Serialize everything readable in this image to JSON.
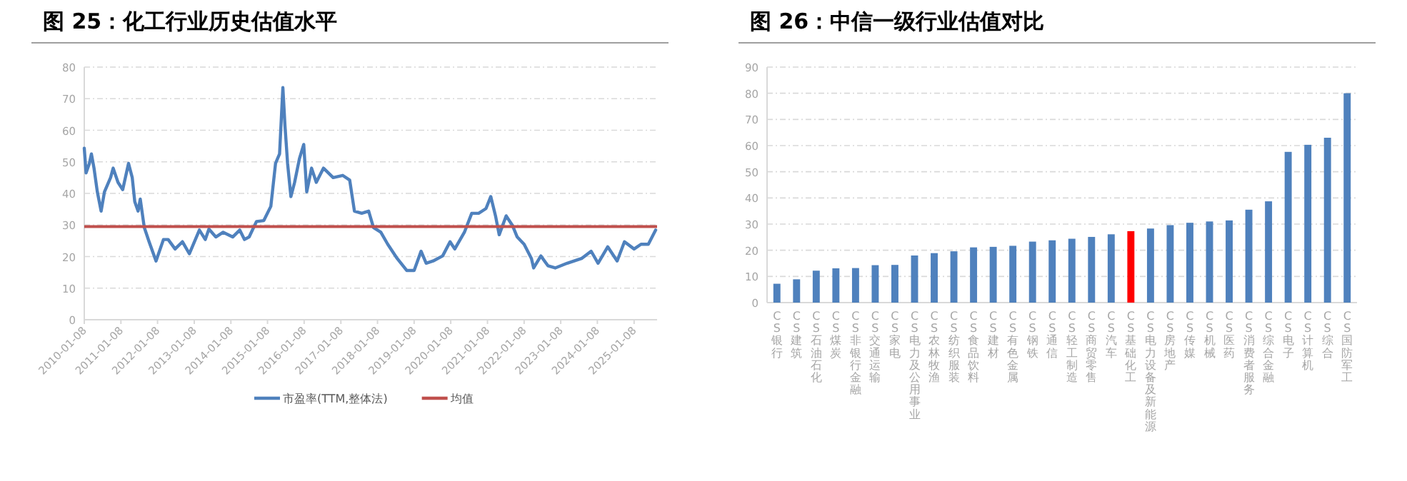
{
  "chart_data": [
    {
      "type": "line",
      "title": "图 25：化工行业历史估值水平",
      "legend": "bottom",
      "grid": "y",
      "line_style": "solid",
      "ylim": [
        0,
        80
      ],
      "yticks": [
        0,
        10,
        20,
        30,
        40,
        50,
        60,
        70,
        80
      ],
      "xlim": [
        "2010-01-08",
        "2025-08-25"
      ],
      "xticks": [
        {
          "value": "2010-01-08",
          "label": "2010-01-08"
        },
        {
          "value": "2011-01-08",
          "label": "2011-01-08"
        },
        {
          "value": "2012-01-08",
          "label": "2012-01-08"
        },
        {
          "value": "2013-01-08",
          "label": "2013-01-08"
        },
        {
          "value": "2014-01-08",
          "label": "2014-01-08"
        },
        {
          "value": "2015-01-08",
          "label": "2015-01-08"
        },
        {
          "value": "2016-01-08",
          "label": "2016-01-08"
        },
        {
          "value": "2017-01-08",
          "label": "2017-01-08"
        },
        {
          "value": "2018-01-08",
          "label": "2018-01-08"
        },
        {
          "value": "2019-01-08",
          "label": "2019-01-08"
        },
        {
          "value": "2020-01-08",
          "label": "2020-01-08"
        },
        {
          "value": "2021-01-08",
          "label": "2021-01-08"
        },
        {
          "value": "2022-01-08",
          "label": "2022-01-08"
        },
        {
          "value": "2023-01-08",
          "label": "2023-01-08"
        },
        {
          "value": "2024-01-08",
          "label": "2024-01-08"
        },
        {
          "value": "2025-01-08",
          "label": "2025-01-08"
        }
      ],
      "ref_lines": [
        {
          "axis": "y",
          "value": 29.5,
          "label": "均值",
          "color": "#c0504d"
        }
      ],
      "series": [
        {
          "name": "市盈率(TTM,整体法)",
          "color": "#4f81bd",
          "x": [
            "2010-01-08",
            "2010-01-26",
            "2010-02-28",
            "2010-03-20",
            "2010-04-15",
            "2010-05-18",
            "2010-06-25",
            "2010-07-28",
            "2010-09-27",
            "2010-10-23",
            "2010-12-10",
            "2011-01-26",
            "2011-03-25",
            "2011-05-01",
            "2011-05-26",
            "2011-06-28",
            "2011-07-20",
            "2011-08-29",
            "2011-10-16",
            "2011-12-24",
            "2012-03-07",
            "2012-04-23",
            "2012-07-01",
            "2012-09-12",
            "2012-11-20",
            "2013-02-28",
            "2013-04-28",
            "2013-06-03",
            "2013-08-11",
            "2013-10-23",
            "2014-01-26",
            "2014-04-06",
            "2014-05-23",
            "2014-07-09",
            "2014-09-20",
            "2014-12-02",
            "2015-02-10",
            "2015-03-29",
            "2015-05-08",
            "2015-06-10",
            "2015-07-01",
            "2015-07-27",
            "2015-08-29",
            "2015-10-05",
            "2015-11-22",
            "2016-01-04",
            "2016-02-03",
            "2016-03-22",
            "2016-05-08",
            "2016-07-19",
            "2016-10-23",
            "2017-01-26",
            "2017-04-06",
            "2017-05-23",
            "2017-08-04",
            "2017-10-12",
            "2017-11-29",
            "2018-02-10",
            "2018-04-20",
            "2018-07-23",
            "2018-10-26",
            "2019-01-08",
            "2019-03-18",
            "2019-05-08",
            "2019-07-16",
            "2019-10-19",
            "2020-01-01",
            "2020-02-17",
            "2020-05-23",
            "2020-08-04",
            "2020-10-12",
            "2020-12-24",
            "2021-02-10",
            "2021-03-29",
            "2021-05-05",
            "2021-07-13",
            "2021-09-13",
            "2021-10-31",
            "2022-01-08",
            "2022-03-22",
            "2022-04-13",
            "2022-06-24",
            "2022-09-02",
            "2022-11-14",
            "2023-03-14",
            "2023-08-04",
            "2023-11-07",
            "2024-01-15",
            "2024-04-20",
            "2024-07-23",
            "2024-10-04",
            "2025-01-08",
            "2025-03-18",
            "2025-05-30",
            "2025-08-11"
          ],
          "values": [
            54.3,
            46.5,
            49.5,
            52.5,
            48,
            40.5,
            34.4,
            40.5,
            45,
            48,
            43.5,
            41.2,
            49.5,
            45,
            37.4,
            34.4,
            38.2,
            29.2,
            24.7,
            18.6,
            25.4,
            25.4,
            22.4,
            24.7,
            20.9,
            28.4,
            25.4,
            28.7,
            26.2,
            27.7,
            26.2,
            28.4,
            25.4,
            26.2,
            31.1,
            31.4,
            35.9,
            49.5,
            52.5,
            73.5,
            61.5,
            49.5,
            39,
            43.5,
            51,
            55.5,
            40.5,
            48,
            43.5,
            48,
            45,
            45.7,
            44.2,
            34.4,
            33.7,
            34.4,
            29.2,
            27.7,
            23.9,
            19.4,
            15.6,
            15.6,
            21.7,
            17.9,
            18.6,
            20.2,
            24.7,
            22.4,
            27.7,
            33.7,
            33.7,
            35.2,
            39,
            32.9,
            26.9,
            32.9,
            29.9,
            26.2,
            23.9,
            19.4,
            16.4,
            20.2,
            17.1,
            16.4,
            17.9,
            19.4,
            21.7,
            17.9,
            23.1,
            18.6,
            24.7,
            22.4,
            23.9,
            23.9,
            28.4
          ]
        }
      ]
    },
    {
      "type": "bar",
      "title": "图 26：中信一级行业估值对比",
      "grid": "y",
      "ylim": [
        0,
        90
      ],
      "yticks": [
        0,
        10,
        20,
        30,
        40,
        50,
        60,
        70,
        80,
        90
      ],
      "categories": [
        "CS银行",
        "CS建筑",
        "CS石油石化",
        "CS煤炭",
        "CS非银行金融",
        "CS交通运输",
        "CS家电",
        "CS电力及公用事业",
        "CS农林牧渔",
        "CS纺织服装",
        "CS食品饮料",
        "CS建材",
        "CS有色金属",
        "CS钢铁",
        "CS通信",
        "CS轻工制造",
        "CS商贸零售",
        "CS汽车",
        "CS基础化工",
        "CS电力设备及新能源",
        "CS房地产",
        "CS传媒",
        "CS机械",
        "CS医药",
        "CS消费者服务",
        "CS综合金融",
        "CS电子",
        "CS计算机",
        "CS综合",
        "CS国防军工"
      ],
      "values": [
        7.2,
        8.9,
        12.2,
        13.1,
        13.2,
        14.3,
        14.4,
        18.0,
        18.9,
        19.6,
        21.1,
        21.3,
        21.7,
        23.3,
        23.8,
        24.4,
        25.1,
        26.1,
        27.3,
        28.3,
        29.6,
        30.5,
        31.0,
        31.4,
        35.5,
        38.7,
        57.6,
        60.3,
        63.0,
        80.0
      ],
      "colors": [
        "#4f81bd",
        "#4f81bd",
        "#4f81bd",
        "#4f81bd",
        "#4f81bd",
        "#4f81bd",
        "#4f81bd",
        "#4f81bd",
        "#4f81bd",
        "#4f81bd",
        "#4f81bd",
        "#4f81bd",
        "#4f81bd",
        "#4f81bd",
        "#4f81bd",
        "#4f81bd",
        "#4f81bd",
        "#4f81bd",
        "#ff0000",
        "#4f81bd",
        "#4f81bd",
        "#4f81bd",
        "#4f81bd",
        "#4f81bd",
        "#4f81bd",
        "#4f81bd",
        "#4f81bd",
        "#4f81bd",
        "#4f81bd",
        "#4f81bd"
      ]
    }
  ]
}
